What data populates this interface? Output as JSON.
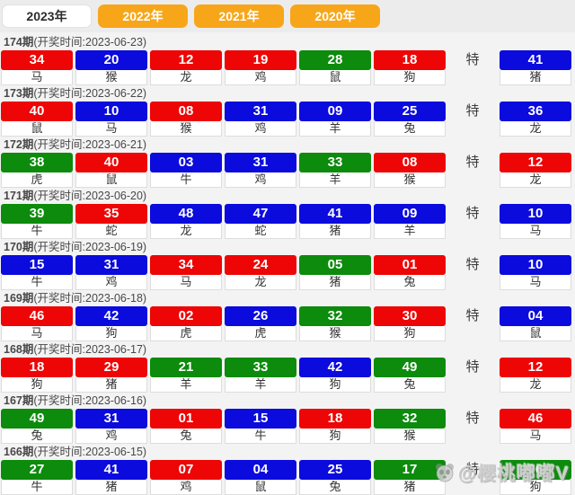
{
  "tabs": [
    {
      "label": "2023年",
      "active": true
    },
    {
      "label": "2022年",
      "active": false
    },
    {
      "label": "2021年",
      "active": false
    },
    {
      "label": "2020年",
      "active": false
    }
  ],
  "te_label": "特",
  "colors": {
    "red": "#ee0505",
    "blue": "#0b0bdd",
    "green": "#0c8b0c",
    "tab_orange": "#f7a61a"
  },
  "draws": [
    {
      "issue": "174期",
      "time": "(开奖时间:2023-06-23)",
      "numbers": [
        {
          "n": "34",
          "c": "red",
          "a": "马"
        },
        {
          "n": "20",
          "c": "blue",
          "a": "猴"
        },
        {
          "n": "12",
          "c": "red",
          "a": "龙"
        },
        {
          "n": "19",
          "c": "red",
          "a": "鸡"
        },
        {
          "n": "28",
          "c": "green",
          "a": "鼠"
        },
        {
          "n": "18",
          "c": "red",
          "a": "狗"
        }
      ],
      "special": {
        "n": "41",
        "c": "blue",
        "a": "猪"
      }
    },
    {
      "issue": "173期",
      "time": "(开奖时间:2023-06-22)",
      "numbers": [
        {
          "n": "40",
          "c": "red",
          "a": "鼠"
        },
        {
          "n": "10",
          "c": "blue",
          "a": "马"
        },
        {
          "n": "08",
          "c": "red",
          "a": "猴"
        },
        {
          "n": "31",
          "c": "blue",
          "a": "鸡"
        },
        {
          "n": "09",
          "c": "blue",
          "a": "羊"
        },
        {
          "n": "25",
          "c": "blue",
          "a": "兔"
        }
      ],
      "special": {
        "n": "36",
        "c": "blue",
        "a": "龙"
      }
    },
    {
      "issue": "172期",
      "time": "(开奖时间:2023-06-21)",
      "numbers": [
        {
          "n": "38",
          "c": "green",
          "a": "虎"
        },
        {
          "n": "40",
          "c": "red",
          "a": "鼠"
        },
        {
          "n": "03",
          "c": "blue",
          "a": "牛"
        },
        {
          "n": "31",
          "c": "blue",
          "a": "鸡"
        },
        {
          "n": "33",
          "c": "green",
          "a": "羊"
        },
        {
          "n": "08",
          "c": "red",
          "a": "猴"
        }
      ],
      "special": {
        "n": "12",
        "c": "red",
        "a": "龙"
      }
    },
    {
      "issue": "171期",
      "time": "(开奖时间:2023-06-20)",
      "numbers": [
        {
          "n": "39",
          "c": "green",
          "a": "牛"
        },
        {
          "n": "35",
          "c": "red",
          "a": "蛇"
        },
        {
          "n": "48",
          "c": "blue",
          "a": "龙"
        },
        {
          "n": "47",
          "c": "blue",
          "a": "蛇"
        },
        {
          "n": "41",
          "c": "blue",
          "a": "猪"
        },
        {
          "n": "09",
          "c": "blue",
          "a": "羊"
        }
      ],
      "special": {
        "n": "10",
        "c": "blue",
        "a": "马"
      }
    },
    {
      "issue": "170期",
      "time": "(开奖时间:2023-06-19)",
      "numbers": [
        {
          "n": "15",
          "c": "blue",
          "a": "牛"
        },
        {
          "n": "31",
          "c": "blue",
          "a": "鸡"
        },
        {
          "n": "34",
          "c": "red",
          "a": "马"
        },
        {
          "n": "24",
          "c": "red",
          "a": "龙"
        },
        {
          "n": "05",
          "c": "green",
          "a": "猪"
        },
        {
          "n": "01",
          "c": "red",
          "a": "兔"
        }
      ],
      "special": {
        "n": "10",
        "c": "blue",
        "a": "马"
      }
    },
    {
      "issue": "169期",
      "time": "(开奖时间:2023-06-18)",
      "numbers": [
        {
          "n": "46",
          "c": "red",
          "a": "马"
        },
        {
          "n": "42",
          "c": "blue",
          "a": "狗"
        },
        {
          "n": "02",
          "c": "red",
          "a": "虎"
        },
        {
          "n": "26",
          "c": "blue",
          "a": "虎"
        },
        {
          "n": "32",
          "c": "green",
          "a": "猴"
        },
        {
          "n": "30",
          "c": "red",
          "a": "狗"
        }
      ],
      "special": {
        "n": "04",
        "c": "blue",
        "a": "鼠"
      }
    },
    {
      "issue": "168期",
      "time": "(开奖时间:2023-06-17)",
      "numbers": [
        {
          "n": "18",
          "c": "red",
          "a": "狗"
        },
        {
          "n": "29",
          "c": "red",
          "a": "猪"
        },
        {
          "n": "21",
          "c": "green",
          "a": "羊"
        },
        {
          "n": "33",
          "c": "green",
          "a": "羊"
        },
        {
          "n": "42",
          "c": "blue",
          "a": "狗"
        },
        {
          "n": "49",
          "c": "green",
          "a": "兔"
        }
      ],
      "special": {
        "n": "12",
        "c": "red",
        "a": "龙"
      }
    },
    {
      "issue": "167期",
      "time": "(开奖时间:2023-06-16)",
      "numbers": [
        {
          "n": "49",
          "c": "green",
          "a": "兔"
        },
        {
          "n": "31",
          "c": "blue",
          "a": "鸡"
        },
        {
          "n": "01",
          "c": "red",
          "a": "兔"
        },
        {
          "n": "15",
          "c": "blue",
          "a": "牛"
        },
        {
          "n": "18",
          "c": "red",
          "a": "狗"
        },
        {
          "n": "32",
          "c": "green",
          "a": "猴"
        }
      ],
      "special": {
        "n": "46",
        "c": "red",
        "a": "马"
      }
    },
    {
      "issue": "166期",
      "time": "(开奖时间:2023-06-15)",
      "numbers": [
        {
          "n": "27",
          "c": "green",
          "a": "牛"
        },
        {
          "n": "41",
          "c": "blue",
          "a": "猪"
        },
        {
          "n": "07",
          "c": "red",
          "a": "鸡"
        },
        {
          "n": "04",
          "c": "blue",
          "a": "鼠"
        },
        {
          "n": "25",
          "c": "blue",
          "a": "兔"
        },
        {
          "n": "17",
          "c": "green",
          "a": "猪"
        }
      ],
      "special": {
        "n": "06",
        "c": "green",
        "a": "狗"
      }
    }
  ],
  "watermark": {
    "icon": "panda-icon",
    "text": "@樱桃嘟嘟V"
  }
}
